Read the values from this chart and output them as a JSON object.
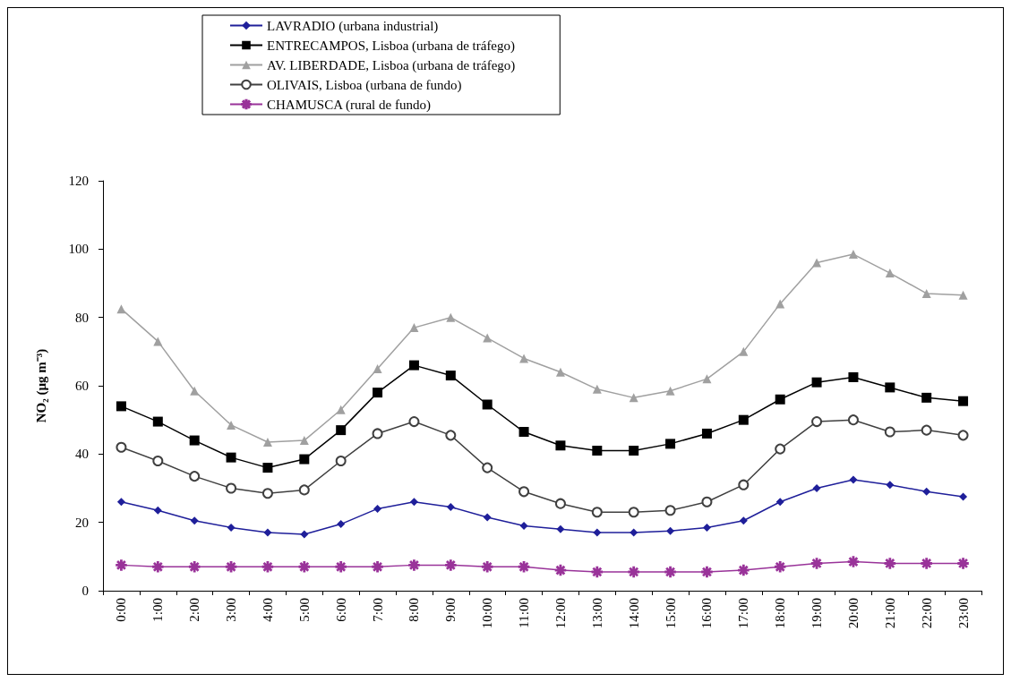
{
  "chart_data": {
    "type": "line",
    "ylabel": "NO₂ (µg m⁻³)",
    "categories": [
      "0:00",
      "1:00",
      "2:00",
      "3:00",
      "4:00",
      "5:00",
      "6:00",
      "7:00",
      "8:00",
      "9:00",
      "10:00",
      "11:00",
      "12:00",
      "13:00",
      "14:00",
      "15:00",
      "16:00",
      "17:00",
      "18:00",
      "19:00",
      "20:00",
      "21:00",
      "22:00",
      "23:00"
    ],
    "ylim": [
      0,
      120
    ],
    "yticks": [
      0,
      20,
      40,
      60,
      80,
      100,
      120
    ],
    "grid": false,
    "legend": "top",
    "series": [
      {
        "name": "LAVRADIO (urbana industrial)",
        "color": "#1f1f9a",
        "marker": "diamond",
        "values": [
          26,
          23.5,
          20.5,
          18.5,
          17,
          16.5,
          19.5,
          24,
          26,
          24.5,
          21.5,
          19,
          18,
          17,
          17,
          17.5,
          18.5,
          20.5,
          26,
          30,
          32.5,
          31,
          29,
          27.5
        ]
      },
      {
        "name": "ENTRECAMPOS, Lisboa (urbana de tráfego)",
        "color": "#000000",
        "marker": "square",
        "values": [
          54,
          49.5,
          44,
          39,
          36,
          38.5,
          47,
          58,
          66,
          63,
          54.5,
          46.5,
          42.5,
          41,
          41,
          43,
          46,
          50,
          56,
          61,
          62.5,
          59.5,
          56.5,
          55.5
        ]
      },
      {
        "name": "AV. LIBERDADE, Lisboa (urbana de tráfego)",
        "color": "#a0a0a0",
        "marker": "triangle",
        "values": [
          82.5,
          73,
          58.5,
          48.5,
          43.5,
          44,
          53,
          65,
          77,
          80,
          74,
          68,
          64,
          59,
          56.5,
          58.5,
          62,
          70,
          84,
          96,
          98.5,
          93,
          87,
          86.5
        ]
      },
      {
        "name": "OLIVAIS, Lisboa (urbana de fundo)",
        "color": "#404040",
        "marker": "circle",
        "values": [
          42,
          38,
          33.5,
          30,
          28.5,
          29.5,
          38,
          46,
          49.5,
          45.5,
          36,
          29,
          25.5,
          23,
          23,
          23.5,
          26,
          31,
          41.5,
          49.5,
          50,
          46.5,
          47,
          45.5
        ]
      },
      {
        "name": "CHAMUSCA (rural de fundo)",
        "color": "#993399",
        "marker": "star",
        "values": [
          7.5,
          7,
          7,
          7,
          7,
          7,
          7,
          7,
          7.5,
          7.5,
          7,
          7,
          6,
          5.5,
          5.5,
          5.5,
          5.5,
          6,
          7,
          8,
          8.5,
          8,
          8,
          8
        ]
      }
    ]
  }
}
